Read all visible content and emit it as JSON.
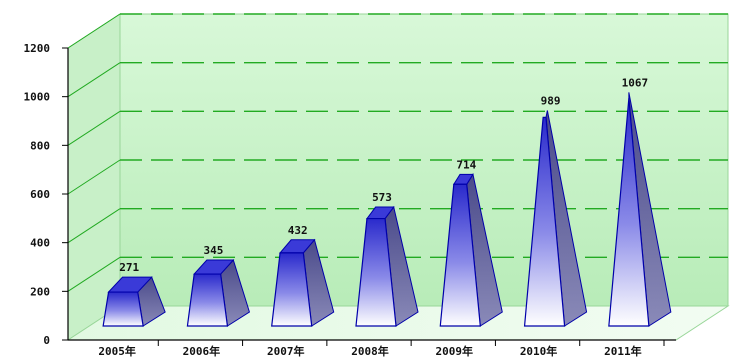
{
  "chart_data": {
    "type": "bar",
    "title": "",
    "xlabel": "",
    "ylabel": "",
    "categories": [
      "2005年",
      "2006年",
      "2007年",
      "2008年",
      "2009年",
      "2010年",
      "2011年"
    ],
    "values": [
      271,
      345,
      432,
      573,
      714,
      989,
      1067
    ],
    "data_labels": [
      "271",
      "345",
      "432",
      "573",
      "714",
      "989",
      "1067"
    ],
    "ylim": [
      0,
      1200
    ],
    "yticks": [
      0,
      200,
      400,
      600,
      800,
      1000,
      1200
    ],
    "grid": true,
    "legend": "none",
    "style": "3d-pyramid-prism",
    "colors": {
      "bar_top": "#2a2acc",
      "bar_bottom": "#ffffff",
      "bar_side": "#5a5a99",
      "bar_outline": "#0000aa",
      "wall": "#c8f2c8",
      "floor": "#e6fae6",
      "grid": "#22aa22"
    }
  }
}
